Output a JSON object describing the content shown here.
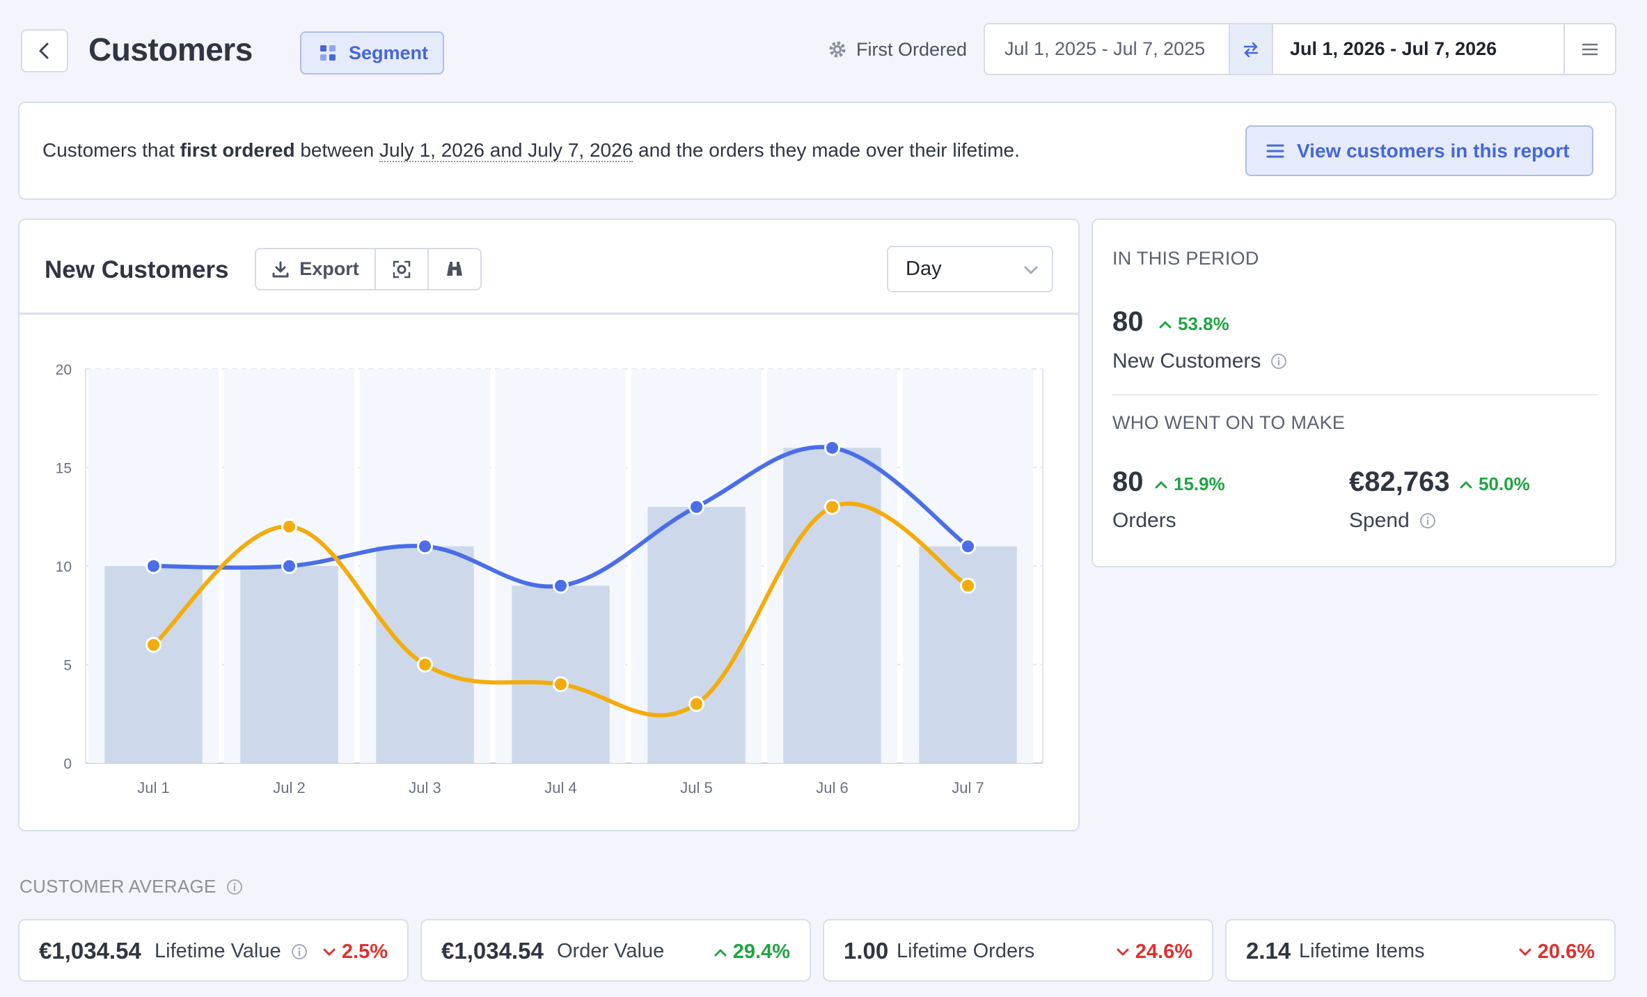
{
  "header": {
    "title": "Customers",
    "segment_label": "Segment",
    "first_ordered_label": "First Ordered",
    "compare_range": "Jul 1, 2025 - Jul 7, 2025",
    "current_range": "Jul 1, 2026 - Jul 7, 2026"
  },
  "description": {
    "part1": "Customers that ",
    "bold": "first ordered",
    "part2": " between ",
    "range": "July 1, 2026 and July 7, 2026",
    "part3": " and the orders they made over their lifetime.",
    "view_button": "View customers in this report"
  },
  "chart_card": {
    "title": "New Customers",
    "export_label": "Export",
    "granularity": "Day"
  },
  "chart_data": {
    "type": "bar",
    "categories": [
      "Jul 1",
      "Jul 2",
      "Jul 3",
      "Jul 4",
      "Jul 5",
      "Jul 6",
      "Jul 7"
    ],
    "ylim": [
      0,
      20
    ],
    "yticks": [
      0,
      5,
      10,
      15,
      20
    ],
    "grid": true,
    "series": [
      {
        "type": "bar",
        "values": [
          10,
          10,
          11,
          9,
          13,
          16,
          11
        ],
        "color": "#cdd9ea"
      },
      {
        "type": "line",
        "values": [
          10,
          10,
          11,
          9,
          13,
          16,
          11
        ],
        "color": "#4a6ee8"
      },
      {
        "type": "line",
        "values": [
          6,
          12,
          5,
          4,
          3,
          13,
          9
        ],
        "color": "#f4ac0c"
      }
    ]
  },
  "stats": {
    "period_heading": "IN THIS PERIOD",
    "new_customers_value": "80",
    "new_customers_change": "53.8%",
    "new_customers_label": "New Customers",
    "made_heading": "WHO WENT ON TO MAKE",
    "orders_value": "80",
    "orders_change": "15.9%",
    "orders_label": "Orders",
    "spend_value": "€82,763",
    "spend_change": "50.0%",
    "spend_label": "Spend"
  },
  "averages": {
    "heading": "CUSTOMER AVERAGE",
    "cards": [
      {
        "value": "€1,034.54",
        "label": "Lifetime Value",
        "change": "2.5%",
        "direction": "down"
      },
      {
        "value": "€1,034.54",
        "label": "Order Value",
        "change": "29.4%",
        "direction": "up"
      },
      {
        "value": "1.00",
        "label": "Lifetime Orders",
        "change": "24.6%",
        "direction": "down"
      },
      {
        "value": "2.14",
        "label": "Lifetime Items",
        "change": "20.6%",
        "direction": "down"
      }
    ]
  },
  "colors": {
    "accent": "#4567d8",
    "up": "#1ea441",
    "down": "#e0302f"
  }
}
